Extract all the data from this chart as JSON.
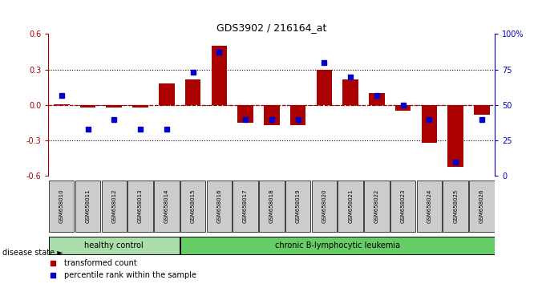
{
  "title": "GDS3902 / 216164_at",
  "samples": [
    "GSM658010",
    "GSM658011",
    "GSM658012",
    "GSM658013",
    "GSM658014",
    "GSM658015",
    "GSM658016",
    "GSM658017",
    "GSM658018",
    "GSM658019",
    "GSM658020",
    "GSM658021",
    "GSM658022",
    "GSM658023",
    "GSM658024",
    "GSM658025",
    "GSM658026"
  ],
  "bar_values": [
    0.01,
    -0.02,
    -0.02,
    -0.02,
    0.18,
    0.22,
    0.5,
    -0.15,
    -0.17,
    -0.17,
    0.3,
    0.22,
    0.1,
    -0.05,
    -0.32,
    -0.52,
    -0.08
  ],
  "percentile_values": [
    57,
    33,
    40,
    33,
    33,
    73,
    87,
    40,
    40,
    40,
    80,
    70,
    57,
    50,
    40,
    10,
    40
  ],
  "healthy_control_count": 5,
  "group1_label": "healthy control",
  "group2_label": "chronic B-lymphocytic leukemia",
  "disease_state_label": "disease state",
  "bar_color": "#AA0000",
  "marker_color": "#0000CC",
  "ylim": [
    -0.6,
    0.6
  ],
  "yticks_left": [
    -0.6,
    -0.3,
    0.0,
    0.3,
    0.6
  ],
  "yticks_right": [
    0,
    25,
    50,
    75,
    100
  ],
  "legend_bar": "transformed count",
  "legend_marker": "percentile rank within the sample",
  "bg_color": "#FFFFFF",
  "sample_box_color": "#CCCCCC",
  "healthy_bg": "#AADDAA",
  "leukemia_bg": "#66CC66"
}
